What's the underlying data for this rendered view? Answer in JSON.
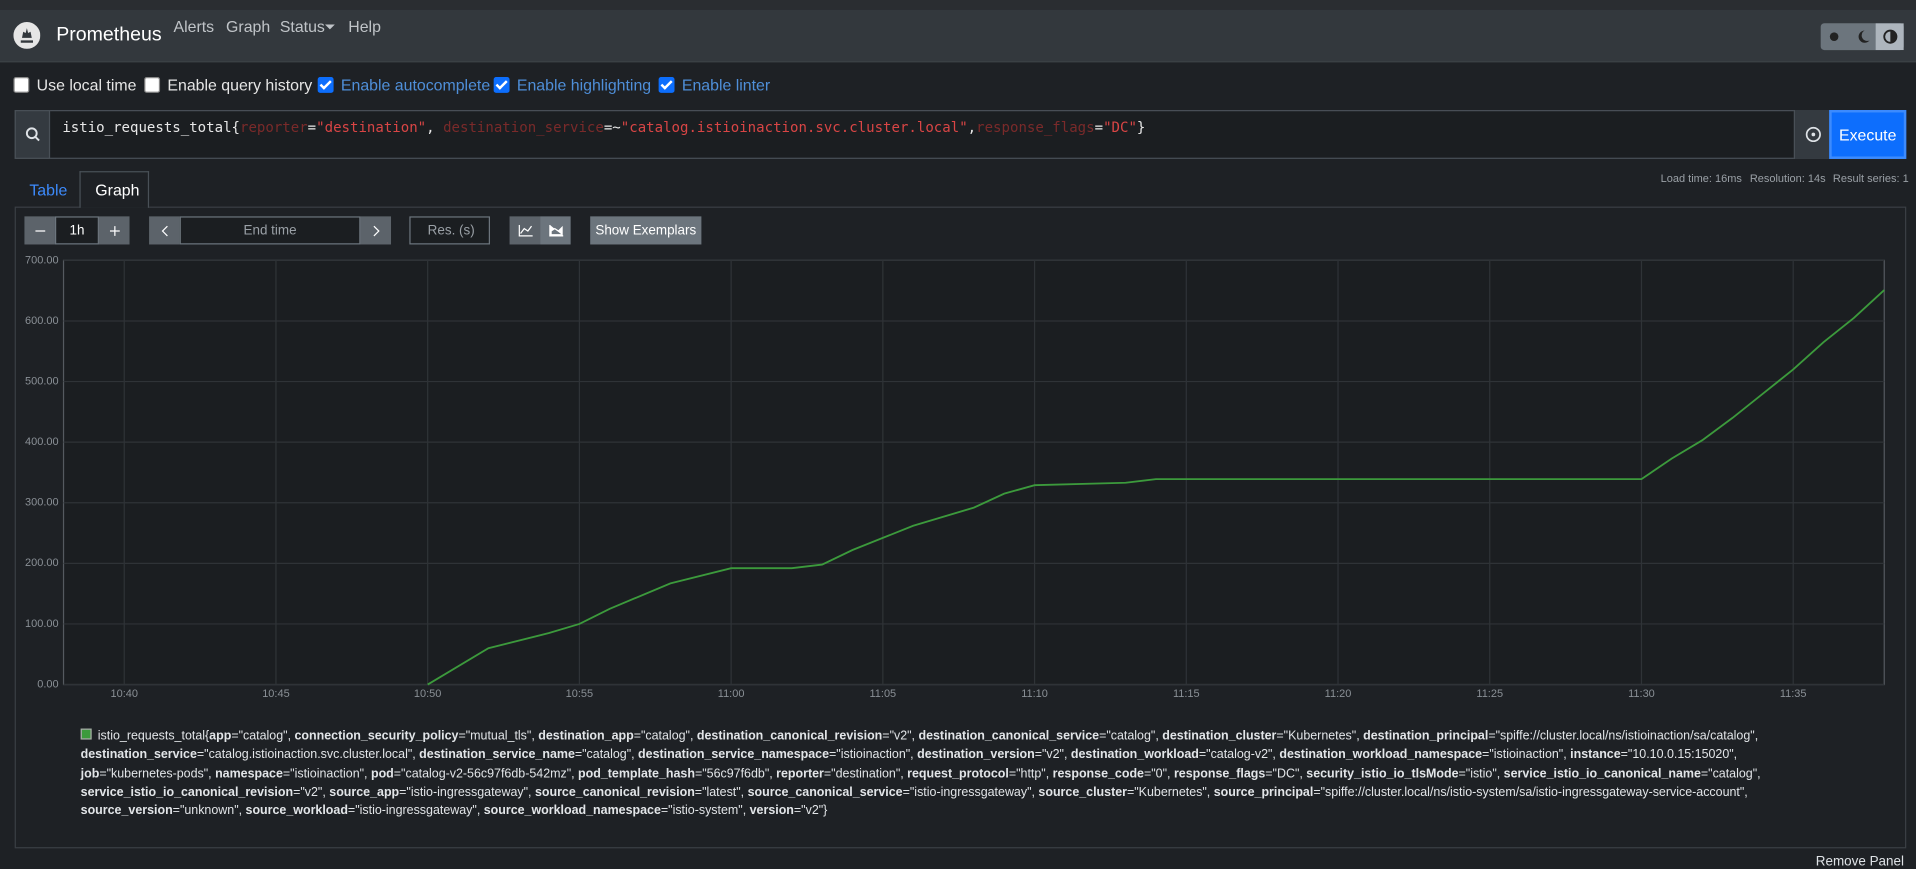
{
  "nav": {
    "brand": "Prometheus",
    "links": [
      "Alerts",
      "Graph",
      "Status",
      "Help"
    ]
  },
  "options": [
    {
      "label": "Use local time",
      "checked": false
    },
    {
      "label": "Enable query history",
      "checked": false
    },
    {
      "label": "Enable autocomplete",
      "checked": true
    },
    {
      "label": "Enable highlighting",
      "checked": true
    },
    {
      "label": "Enable linter",
      "checked": true
    }
  ],
  "query": [
    {
      "text": "istio_requests_total{",
      "kind": "metric"
    },
    {
      "text": "reporter",
      "kind": "label"
    },
    {
      "text": "=",
      "kind": "op"
    },
    {
      "text": "\"destination\"",
      "kind": "string"
    },
    {
      "text": ", ",
      "kind": "op"
    },
    {
      "text": "destination_service",
      "kind": "label"
    },
    {
      "text": "=~",
      "kind": "op"
    },
    {
      "text": "\"catalog.istioinaction.svc.cluster.local\"",
      "kind": "string"
    },
    {
      "text": ",",
      "kind": "op"
    },
    {
      "text": "response_flags",
      "kind": "label"
    },
    {
      "text": "=",
      "kind": "op"
    },
    {
      "text": "\"DC\"",
      "kind": "string"
    },
    {
      "text": "}",
      "kind": "metric"
    }
  ],
  "execute": "Execute",
  "tabs": [
    "Table",
    "Graph"
  ],
  "stats": [
    "Load time: 16ms",
    "Resolution: 14s",
    "Result series: 1"
  ],
  "controls": {
    "range": "1h",
    "end_time": "End time",
    "resolution": "Res. (s)",
    "exemplars": "Show Exemplars"
  },
  "remove_panel": "Remove Panel",
  "chart_data": {
    "type": "line",
    "x": [
      "10:50",
      "10:52",
      "10:54",
      "10:55",
      "10:56",
      "10:58",
      "11:00",
      "11:02",
      "11:03",
      "11:04",
      "11:06",
      "11:08",
      "11:09",
      "11:10",
      "11:13",
      "11:14",
      "11:30",
      "11:31",
      "11:32",
      "11:33",
      "11:34",
      "11:35",
      "11:36",
      "11:37",
      "11:38"
    ],
    "series": [
      {
        "color": "#3c9a3c",
        "values": [
          0,
          60,
          85,
          100,
          125,
          167,
          192,
          192,
          198,
          222,
          262,
          292,
          315,
          329,
          333,
          339,
          339,
          373,
          403,
          440,
          480,
          520,
          565,
          605,
          651
        ],
        "legend": [
          "istio_requests_total{",
          "app",
          "=\"catalog\", ",
          "connection_security_policy",
          "=\"mutual_tls\", ",
          "destination_app",
          "=\"catalog\", ",
          "destination_canonical_revision",
          "=\"v2\", ",
          "destination_canonical_service",
          "=\"catalog\", ",
          "destination_cluster",
          "=\"Kubernetes\", ",
          "destination_principal",
          "=\"spiffe://cluster.local/ns/istioinaction/sa/catalog\", ",
          "destination_service",
          "=\"catalog.istioinaction.svc.cluster.local\", ",
          "destination_service_name",
          "=\"catalog\", ",
          "destination_service_namespace",
          "=\"istioinaction\", ",
          "destination_version",
          "=\"v2\", ",
          "destination_workload",
          "=\"catalog-v2\", ",
          "destination_workload_namespace",
          "=\"istioinaction\", ",
          "instance",
          "=\"10.10.0.15:15020\", ",
          "job",
          "=\"kubernetes-pods\", ",
          "namespace",
          "=\"istioinaction\", ",
          "pod",
          "=\"catalog-v2-56c97f6db-542mz\", ",
          "pod_template_hash",
          "=\"56c97f6db\", ",
          "reporter",
          "=\"destination\", ",
          "request_protocol",
          "=\"http\", ",
          "response_code",
          "=\"0\", ",
          "response_flags",
          "=\"DC\", ",
          "security_istio_io_tlsMode",
          "=\"istio\", ",
          "service_istio_io_canonical_name",
          "=\"catalog\", ",
          "service_istio_io_canonical_revision",
          "=\"v2\", ",
          "source_app",
          "=\"istio-ingressgateway\", ",
          "source_canonical_revision",
          "=\"latest\", ",
          "source_canonical_service",
          "=\"istio-ingressgateway\", ",
          "source_cluster",
          "=\"Kubernetes\", ",
          "source_principal",
          "=\"spiffe://cluster.local/ns/istio-system/sa/istio-ingressgateway-service-account\", ",
          "source_version",
          "=\"unknown\", ",
          "source_workload",
          "=\"istio-ingressgateway\", ",
          "source_workload_namespace",
          "=\"istio-system\", ",
          "version",
          "=\"v2\"}"
        ]
      }
    ],
    "xlim": [
      "10:38",
      "11:38"
    ],
    "xticks": [
      "10:40",
      "10:45",
      "10:50",
      "10:55",
      "11:00",
      "11:05",
      "11:10",
      "11:15",
      "11:20",
      "11:25",
      "11:30",
      "11:35"
    ],
    "ylim": [
      0,
      700
    ],
    "yticks": [
      {
        "value": 0,
        "label": "0.00"
      },
      {
        "value": 100,
        "label": "100.00"
      },
      {
        "value": 200,
        "label": "200.00"
      },
      {
        "value": 300,
        "label": "300.00"
      },
      {
        "value": 400,
        "label": "400.00"
      },
      {
        "value": 500,
        "label": "500.00"
      },
      {
        "value": 600,
        "label": "600.00"
      },
      {
        "value": 700,
        "label": "700.00"
      }
    ],
    "grid": true
  }
}
